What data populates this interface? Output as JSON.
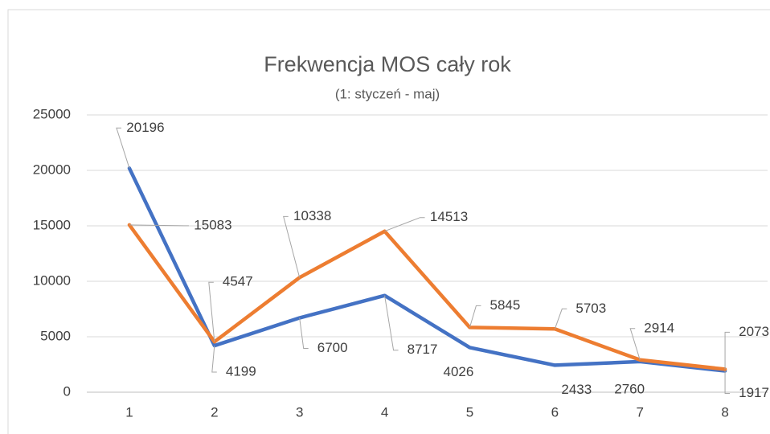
{
  "chart_data": {
    "type": "line",
    "title": "Frekwencja MOS cały rok",
    "subtitle": "(1: styczeń - maj)",
    "categories": [
      1,
      2,
      3,
      4,
      5,
      6,
      7,
      8
    ],
    "series": [
      {
        "color": "#4472c4",
        "values": [
          20196,
          4199,
          6700,
          8717,
          4026,
          2433,
          2760,
          1917
        ]
      },
      {
        "color": "#ed7d31",
        "values": [
          15083,
          4547,
          10338,
          14513,
          5845,
          5703,
          2914,
          2073
        ]
      }
    ],
    "ylim": [
      0,
      25000
    ],
    "yticks": [
      0,
      5000,
      10000,
      15000,
      20000,
      25000
    ],
    "grid": true
  }
}
